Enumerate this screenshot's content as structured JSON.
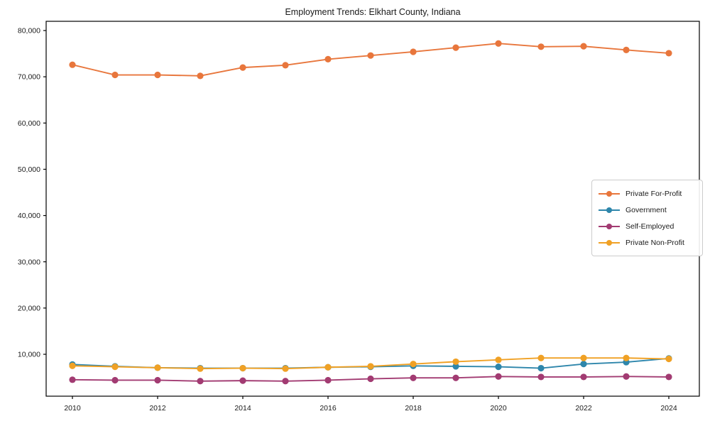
{
  "window": {
    "background": "#ffffff",
    "text_color": "#1a1a1a",
    "axis_color": "#000000"
  },
  "chart_data": {
    "type": "line",
    "title": "Employment Trends: Elkhart County, Indiana",
    "xlabel": "",
    "ylabel": "",
    "grid": false,
    "legend_position": "right",
    "x": [
      2010,
      2011,
      2012,
      2013,
      2014,
      2015,
      2016,
      2017,
      2018,
      2019,
      2020,
      2021,
      2022,
      2023,
      2024
    ],
    "x_ticks": [
      2010,
      2012,
      2014,
      2016,
      2018,
      2020,
      2022,
      2024
    ],
    "y_ticks": [
      10000,
      20000,
      30000,
      40000,
      50000,
      60000,
      70000,
      80000
    ],
    "ylim": [
      900,
      82100
    ],
    "series": [
      {
        "name": "Private For-Profit",
        "color": "#E8763C",
        "values": [
          72600,
          70400,
          70400,
          70200,
          72000,
          72500,
          73800,
          74600,
          75400,
          76300,
          77200,
          76500,
          76600,
          75800,
          75100
        ]
      },
      {
        "name": "Government",
        "color": "#2E86AB",
        "values": [
          7800,
          7400,
          7100,
          7000,
          7000,
          7000,
          7200,
          7300,
          7500,
          7400,
          7300,
          7000,
          7900,
          8300,
          9100
        ]
      },
      {
        "name": "Self-Employed",
        "color": "#A23B72",
        "values": [
          4500,
          4400,
          4400,
          4200,
          4300,
          4200,
          4400,
          4700,
          4900,
          4900,
          5200,
          5100,
          5100,
          5200,
          5100
        ]
      },
      {
        "name": "Private Non-Profit",
        "color": "#F0A125",
        "values": [
          7500,
          7300,
          7100,
          6900,
          7000,
          6900,
          7200,
          7400,
          7900,
          8400,
          8800,
          9200,
          9200,
          9200,
          9000
        ]
      }
    ]
  }
}
